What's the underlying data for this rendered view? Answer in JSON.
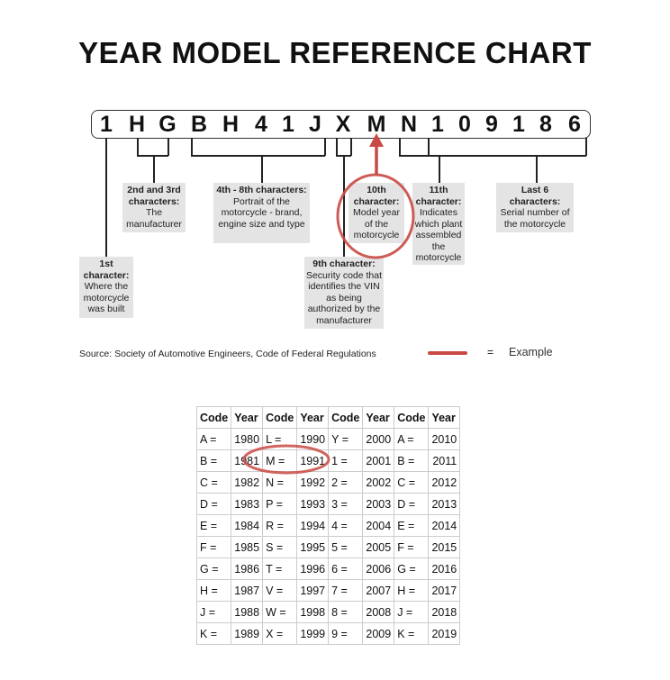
{
  "title": "YEAR MODEL REFERENCE CHART",
  "vin": [
    "1",
    "H",
    "G",
    "B",
    "H",
    "4",
    "1",
    "J",
    "X",
    "M",
    "N",
    "1",
    "0",
    "9",
    "1",
    "8",
    "6"
  ],
  "boxes": {
    "first": {
      "head": "1st character:",
      "body": "Where the motorcycle was built"
    },
    "second_third": {
      "head": "2nd and 3rd characters:",
      "body": "The manufacturer"
    },
    "fourth_eighth": {
      "head": "4th - 8th characters:",
      "body": "Portrait of the motorcycle - brand, engine size and type"
    },
    "ninth": {
      "head": "9th character:",
      "body": "Security code that identifies the VIN as being authorized by the manufacturer"
    },
    "tenth": {
      "head": "10th character:",
      "body": "Model year of the motorcycle"
    },
    "eleventh": {
      "head": "11th character:",
      "body": "Indicates which plant assembled the motorcycle"
    },
    "last6": {
      "head": "Last 6 characters:",
      "body": "Serial number of the motorcycle"
    }
  },
  "source": "Source:  Society of Automotive Engineers, Code of Federal Regulations",
  "legend": {
    "eq": "=",
    "label": "Example",
    "color": "#c94a44"
  },
  "table": {
    "headers": [
      "Code",
      "Year",
      "Code",
      "Year",
      "Code",
      "Year",
      "Code",
      "Year"
    ],
    "rows": [
      [
        "A =",
        "1980",
        "L =",
        "1990",
        "Y =",
        "2000",
        "A =",
        "2010"
      ],
      [
        "B =",
        "1981",
        "M =",
        "1991",
        "1 =",
        "2001",
        "B =",
        "2011"
      ],
      [
        "C =",
        "1982",
        "N =",
        "1992",
        "2 =",
        "2002",
        "C =",
        "2012"
      ],
      [
        "D =",
        "1983",
        "P =",
        "1993",
        "3 =",
        "2003",
        "D =",
        "2013"
      ],
      [
        "E =",
        "1984",
        "R =",
        "1994",
        "4 =",
        "2004",
        "E =",
        "2014"
      ],
      [
        "F =",
        "1985",
        "S =",
        "1995",
        "5 =",
        "2005",
        "F =",
        "2015"
      ],
      [
        "G =",
        "1986",
        "T =",
        "1996",
        "6 =",
        "2006",
        "G =",
        "2016"
      ],
      [
        "H =",
        "1987",
        "V =",
        "1997",
        "7 =",
        "2007",
        "H =",
        "2017"
      ],
      [
        "J =",
        "1988",
        "W =",
        "1998",
        "8 =",
        "2008",
        "J =",
        "2018"
      ],
      [
        "K =",
        "1989",
        "X =",
        "1999",
        "9 =",
        "2009",
        "K =",
        "2019"
      ]
    ]
  }
}
